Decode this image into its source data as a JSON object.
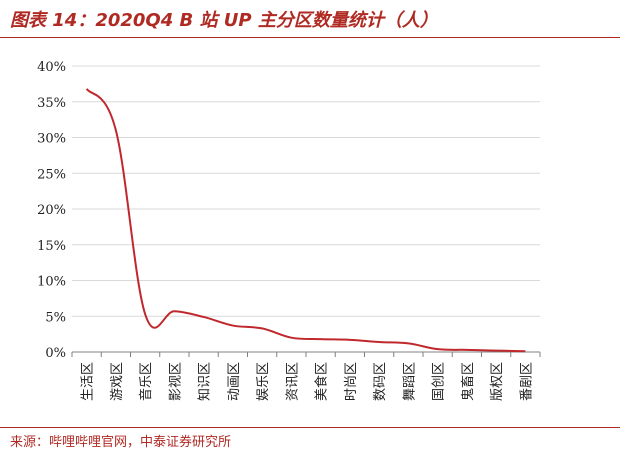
{
  "title": "图表 14：2020Q4 B 站 UP 主分区数量统计（人）",
  "source": "来源：哔哩哔哩官网，中泰证券研究所",
  "colors": {
    "accent": "#b02a24",
    "line": "#c0282d",
    "grid": "#d9d9d9",
    "axis": "#808080"
  },
  "chart_data": {
    "type": "line",
    "title": "图表 14：2020Q4 B 站 UP 主分区数量统计（人）",
    "xlabel": "",
    "ylabel": "",
    "ylim": [
      0,
      40
    ],
    "y_ticks": [
      "0%",
      "5%",
      "10%",
      "15%",
      "20%",
      "25%",
      "30%",
      "35%",
      "40%"
    ],
    "grid": true,
    "legend": "none",
    "categories": [
      "生活区",
      "游戏区",
      "音乐区",
      "影视区",
      "知识区",
      "动画区",
      "娱乐区",
      "资讯区",
      "美食区",
      "时尚区",
      "数码区",
      "舞蹈区",
      "国创区",
      "鬼畜区",
      "版权区",
      "番剧区"
    ],
    "series": [
      {
        "values": [
          36.8,
          31.0,
          5.3,
          5.7,
          4.9,
          3.7,
          3.3,
          2.0,
          1.8,
          1.7,
          1.4,
          1.2,
          0.4,
          0.3,
          0.2,
          0.1
        ]
      }
    ]
  }
}
